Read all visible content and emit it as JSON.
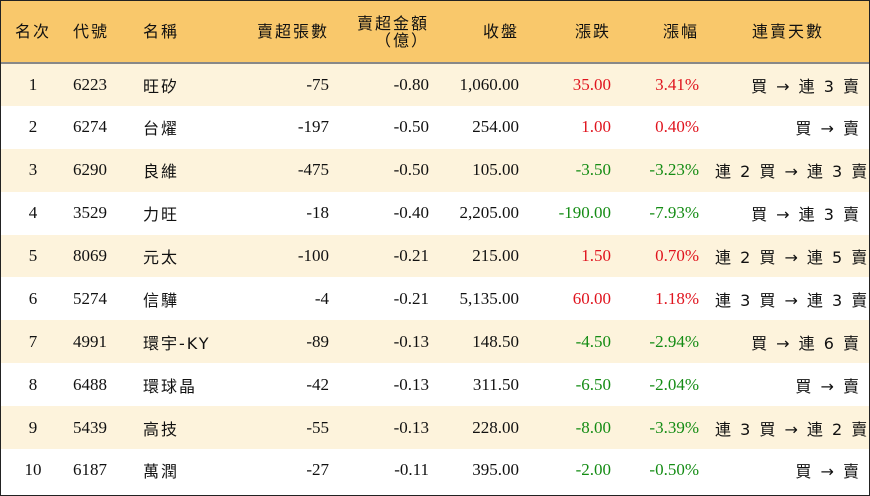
{
  "headers": [
    "名次",
    "代號",
    "名稱",
    "賣超張數",
    "賣超金額\n（億）",
    "收盤",
    "漲跌",
    "漲幅",
    "連賣天數"
  ],
  "rows": [
    {
      "rank": "1",
      "code": "6223",
      "name": "旺矽",
      "shares": "-75",
      "amount": "-0.80",
      "close": "1,060.00",
      "change": "35.00",
      "pct": "3.41%",
      "streak": "買 → 連 3 賣",
      "dir": "up"
    },
    {
      "rank": "2",
      "code": "6274",
      "name": "台燿",
      "shares": "-197",
      "amount": "-0.50",
      "close": "254.00",
      "change": "1.00",
      "pct": "0.40%",
      "streak": "買 → 賣",
      "dir": "up"
    },
    {
      "rank": "3",
      "code": "6290",
      "name": "良維",
      "shares": "-475",
      "amount": "-0.50",
      "close": "105.00",
      "change": "-3.50",
      "pct": "-3.23%",
      "streak": "連 2 買 → 連 3 賣",
      "dir": "down"
    },
    {
      "rank": "4",
      "code": "3529",
      "name": "力旺",
      "shares": "-18",
      "amount": "-0.40",
      "close": "2,205.00",
      "change": "-190.00",
      "pct": "-7.93%",
      "streak": "買 → 連 3 賣",
      "dir": "down"
    },
    {
      "rank": "5",
      "code": "8069",
      "name": "元太",
      "shares": "-100",
      "amount": "-0.21",
      "close": "215.00",
      "change": "1.50",
      "pct": "0.70%",
      "streak": "連 2 買 → 連 5 賣",
      "dir": "up"
    },
    {
      "rank": "6",
      "code": "5274",
      "name": "信驊",
      "shares": "-4",
      "amount": "-0.21",
      "close": "5,135.00",
      "change": "60.00",
      "pct": "1.18%",
      "streak": "連 3 買 → 連 3 賣",
      "dir": "up"
    },
    {
      "rank": "7",
      "code": "4991",
      "name": "環宇-KY",
      "shares": "-89",
      "amount": "-0.13",
      "close": "148.50",
      "change": "-4.50",
      "pct": "-2.94%",
      "streak": "買 → 連 6 賣",
      "dir": "down"
    },
    {
      "rank": "8",
      "code": "6488",
      "name": "環球晶",
      "shares": "-42",
      "amount": "-0.13",
      "close": "311.50",
      "change": "-6.50",
      "pct": "-2.04%",
      "streak": "買 → 賣",
      "dir": "down"
    },
    {
      "rank": "9",
      "code": "5439",
      "name": "高技",
      "shares": "-55",
      "amount": "-0.13",
      "close": "228.00",
      "change": "-8.00",
      "pct": "-3.39%",
      "streak": "連 3 買 → 連 2 賣",
      "dir": "down"
    },
    {
      "rank": "10",
      "code": "6187",
      "name": "萬潤",
      "shares": "-27",
      "amount": "-0.11",
      "close": "395.00",
      "change": "-2.00",
      "pct": "-0.50%",
      "streak": "買 → 賣",
      "dir": "down"
    }
  ]
}
